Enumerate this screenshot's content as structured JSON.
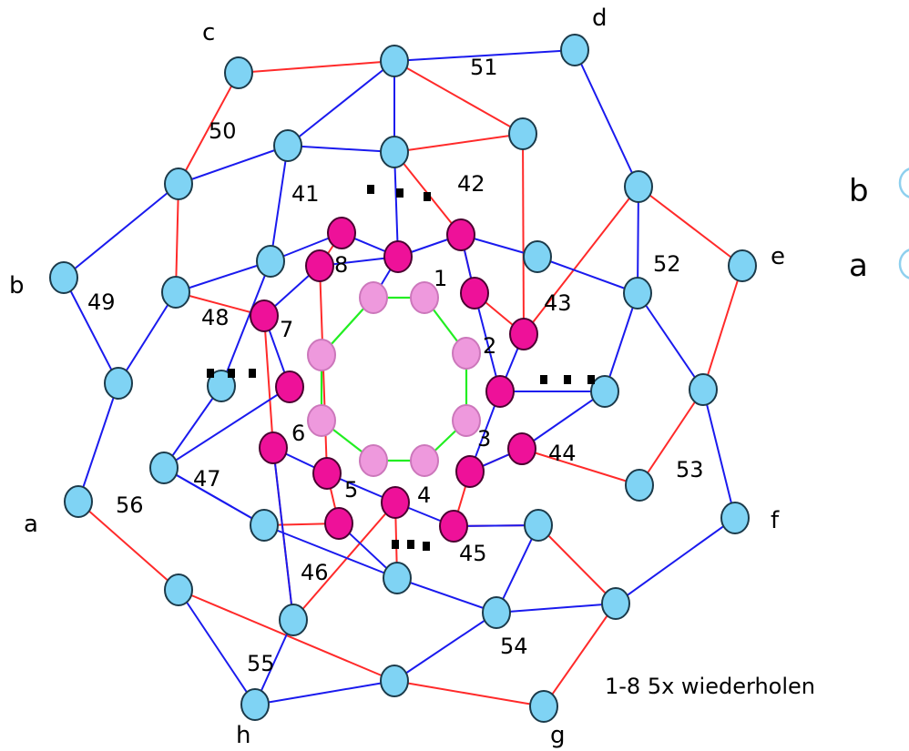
{
  "colors": {
    "bead_blue_fill": "#7fd3f4",
    "bead_blue_stroke": "#1b3a4a",
    "bead_magenta_fill": "#ee1199",
    "bead_magenta_stroke": "#4a0030",
    "bead_pink_fill": "#ee99dd",
    "bead_pink_stroke": "#cc77bb",
    "thread_red": "#ff2a2a",
    "thread_blue": "#1a1aee",
    "thread_green": "#22ee22"
  },
  "center_numbers": [
    "1",
    "2",
    "3",
    "4",
    "5",
    "6",
    "7",
    "8"
  ],
  "ring_numbers": [
    "41",
    "42",
    "43",
    "44",
    "45",
    "46",
    "47",
    "48",
    "49",
    "50",
    "51",
    "52",
    "53",
    "54",
    "55",
    "56"
  ],
  "corner_letters": [
    "a",
    "b",
    "c",
    "d",
    "e",
    "f",
    "g",
    "h"
  ],
  "ellipsis_marks": [
    "...",
    "...",
    "...",
    "..."
  ],
  "note": "1-8 5x wiederholen",
  "legend": [
    {
      "letter": "b",
      "bead": "blue"
    },
    {
      "letter": "a",
      "bead": "blue"
    }
  ]
}
